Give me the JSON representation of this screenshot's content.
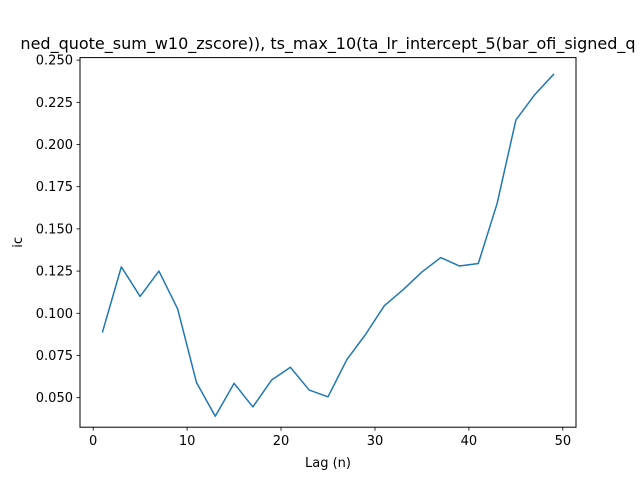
{
  "chart_data": {
    "type": "line",
    "title": "ned_quote_sum_w10_zscore)), ts_max_10(ta_lr_intercept_5(bar_ofi_signed_q",
    "xlabel": "Lag (n)",
    "ylabel": "ic",
    "xlim": [
      -1.4,
      51.4
    ],
    "ylim": [
      0.0325,
      0.2515
    ],
    "xticks": [
      0,
      10,
      20,
      30,
      40,
      50
    ],
    "xtick_labels": [
      "0",
      "10",
      "20",
      "30",
      "40",
      "50"
    ],
    "yticks": [
      0.05,
      0.075,
      0.1,
      0.125,
      0.15,
      0.175,
      0.2,
      0.225,
      0.25
    ],
    "ytick_labels": [
      "0.050",
      "0.075",
      "0.100",
      "0.125",
      "0.150",
      "0.175",
      "0.200",
      "0.225",
      "0.250"
    ],
    "grid": false,
    "legend": "none",
    "series": [
      {
        "color": "#1f77b4",
        "x": [
          1,
          3,
          5,
          7,
          9,
          11,
          13,
          15,
          17,
          19,
          21,
          23,
          25,
          27,
          29,
          31,
          33,
          35,
          37,
          39,
          41,
          43,
          45,
          47,
          49
        ],
        "y": [
          0.089,
          0.1275,
          0.11,
          0.125,
          0.1025,
          0.059,
          0.039,
          0.0585,
          0.0445,
          0.0605,
          0.068,
          0.0545,
          0.0505,
          0.0725,
          0.0875,
          0.1045,
          0.114,
          0.1245,
          0.133,
          0.128,
          0.1295,
          0.165,
          0.2145,
          0.2295,
          0.2415
        ]
      }
    ]
  }
}
